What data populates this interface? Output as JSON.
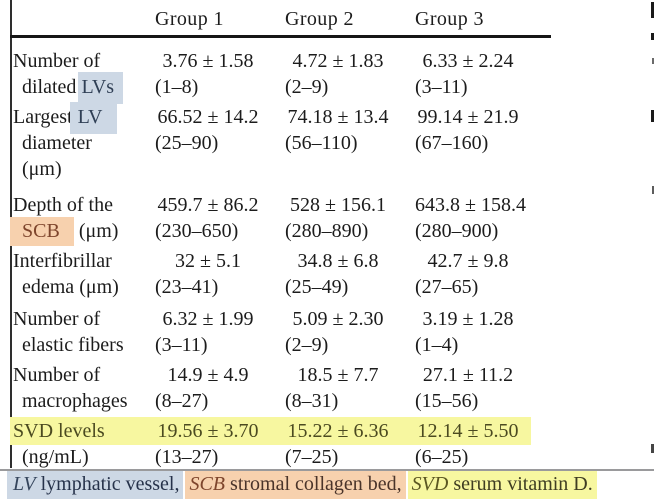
{
  "colors": {
    "highlight_blue": "#cdd8e5",
    "highlight_peach": "#f7d1ae",
    "highlight_yellow": "#f7f7a0",
    "text_main": "#1c1c1c",
    "text_blue": "#2f3f55",
    "text_brown": "#7e452c",
    "text_olive": "#4b4a20",
    "rule_black": "#161616",
    "rule_gray": "#9a9a9c"
  },
  "header": {
    "col1": "Group 1",
    "col2": "Group 2",
    "col3": "Group 3"
  },
  "table": {
    "rows": [
      {
        "label_line1": "Number of",
        "label_line2_pre": "dilated ",
        "label_line2_hl": "LVs",
        "g1_mean": "3.76 ± 1.58",
        "g1_range": "(1–8)",
        "g2_mean": "4.72 ± 1.83",
        "g2_range": "(2–9)",
        "g3_mean": "6.33 ± 2.24",
        "g3_range": "(3–11)"
      },
      {
        "label_line1_pre": "Largest ",
        "label_line1_hl": "LV",
        "label_line2": "diameter",
        "label_line3": "(μm)",
        "g1_mean": "66.52 ± 14.2",
        "g1_range": "(25–90)",
        "g2_mean": "74.18 ± 13.4",
        "g2_range": "(56–110)",
        "g3_mean": "99.14 ± 21.9",
        "g3_range": "(67–160)"
      },
      {
        "label_line1": "Depth of the",
        "label_line2_hl": "SCB",
        "label_line2_post": " (μm)",
        "g1_mean": "459.7 ± 86.2",
        "g1_range": "(230–650)",
        "g2_mean": "528 ± 156.1",
        "g2_range": "(280–890)",
        "g3_mean": "643.8 ± 158.4",
        "g3_range": "(280–900)"
      },
      {
        "label_line1": "Interfibrillar",
        "label_line2": "edema (μm)",
        "g1_mean": "32 ± 5.1",
        "g1_range": "(23–41)",
        "g2_mean": "34.8 ± 6.8",
        "g2_range": "(25–49)",
        "g3_mean": "42.7 ± 9.8",
        "g3_range": "(27–65)"
      },
      {
        "label_line1": "Number of",
        "label_line2": "elastic fibers",
        "g1_mean": "6.32 ± 1.99",
        "g1_range": "(3–11)",
        "g2_mean": "5.09 ± 2.30",
        "g2_range": "(2–9)",
        "g3_mean": "3.19 ± 1.28",
        "g3_range": "(1–4)"
      },
      {
        "label_line1": "Number of",
        "label_line2": "macrophages",
        "g1_mean": "14.9 ± 4.9",
        "g1_range": "(8–27)",
        "g2_mean": "18.5 ± 7.7",
        "g2_range": "(8–31)",
        "g3_mean": "27.1 ± 11.2",
        "g3_range": "(15–56)"
      },
      {
        "label_line1": "SVD levels",
        "label_line2": "(ng/mL)",
        "g1_mean": "19.56 ± 3.70",
        "g1_range": "(13–27)",
        "g2_mean": "15.22 ± 6.36",
        "g2_range": "(7–25)",
        "g3_mean": "12.14 ± 5.50",
        "g3_range": "(6–25)"
      }
    ]
  },
  "footnote": {
    "segments": [
      {
        "abbr": "LV",
        "text": " lymphatic vessel,"
      },
      {
        "abbr": "SCB",
        "text": " stromal collagen bed,"
      },
      {
        "abbr": "SVD",
        "text": " serum vitamin D."
      }
    ]
  }
}
